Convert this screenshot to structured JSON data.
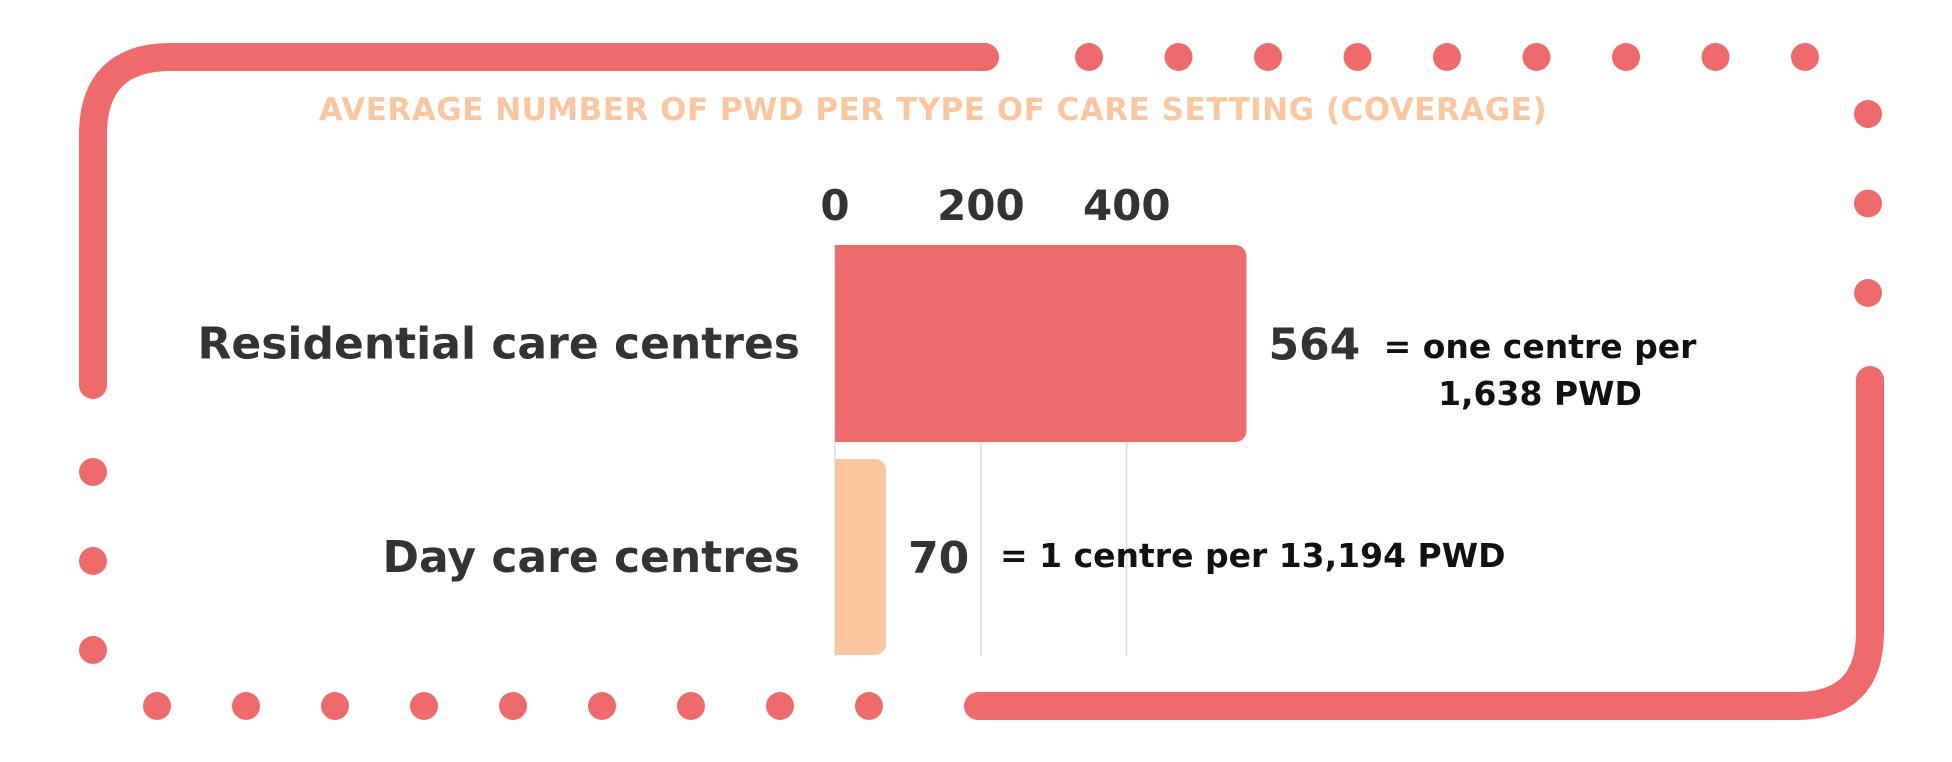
{
  "colors": {
    "frame": "#ef6b6b",
    "bar_residential": "#ef6b6b",
    "bar_day": "#f9c6a0",
    "title": "#f9c6a0",
    "text": "#333333",
    "grid": "#dddddd"
  },
  "chart_data": {
    "type": "bar",
    "orientation": "horizontal",
    "title": "AVERAGE NUMBER OF PWD PER TYPE OF CARE SETTING (COVERAGE)",
    "categories": [
      "Residential care centres",
      "Day care centres"
    ],
    "values": [
      564,
      70
    ],
    "value_labels": [
      "564",
      "70"
    ],
    "x_ticks": [
      0,
      200,
      400
    ],
    "x_tick_labels": [
      "0",
      "200",
      "400"
    ],
    "xlim": [
      0,
      564
    ],
    "grid": true,
    "annotations": [
      "= one centre per 1,638 PWD",
      "= 1 centre per 13,194 PWD"
    ]
  }
}
